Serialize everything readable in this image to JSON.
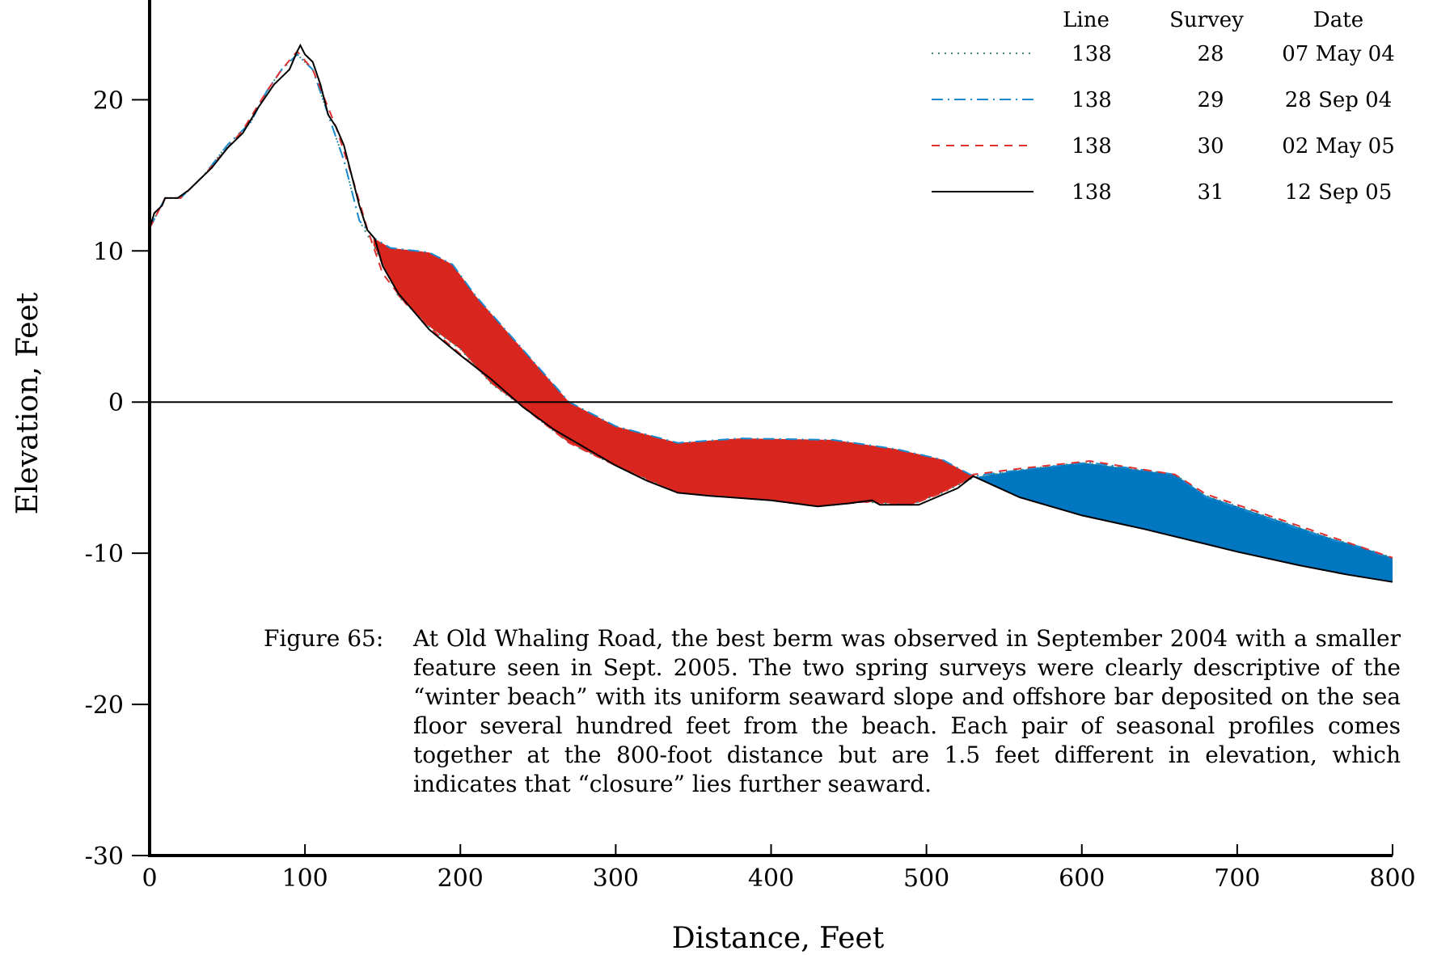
{
  "caption": {
    "label": "Figure 65:",
    "text": "At Old Whaling Road, the best berm was observed in September 2004 with a smaller feature seen in Sept. 2005.  The two spring surveys were clearly descriptive of the “winter beach” with its uniform seaward slope and offshore bar deposited on the sea floor several hundred feet from the beach.  Each pair of seasonal profiles comes together at the 800-foot distance but are 1.5 feet different in elevation, which indicates that “closure” lies further seaward."
  },
  "legend": {
    "headers": [
      "Line",
      "Survey",
      "Date"
    ],
    "entries": [
      {
        "line": "138",
        "survey": "28",
        "date": "07 May 04",
        "style": "dotted",
        "color": "#3a8a7a"
      },
      {
        "line": "138",
        "survey": "29",
        "date": "28 Sep 04",
        "style": "dash-dot",
        "color": "#1a8ad0"
      },
      {
        "line": "138",
        "survey": "30",
        "date": "02 May 05",
        "style": "dashed",
        "color": "#e03030"
      },
      {
        "line": "138",
        "survey": "31",
        "date": "12 Sep 05",
        "style": "solid",
        "color": "#000000"
      }
    ]
  },
  "colors": {
    "fill_erosion": "#d8261e",
    "fill_accretion": "#0077c0"
  },
  "chart_data": {
    "type": "line",
    "xlabel": "Distance, Feet",
    "ylabel": "Elevation, Feet",
    "xlim": [
      0,
      800
    ],
    "ylim": [
      -30,
      25
    ],
    "xticks": [
      0,
      100,
      200,
      300,
      400,
      500,
      600,
      700,
      800
    ],
    "yticks": [
      20,
      10,
      0,
      -10,
      -20,
      -30
    ],
    "zero_line": true,
    "series": [
      {
        "name": "Survey 28 (07 May 04)",
        "points": [
          [
            0,
            11.5
          ],
          [
            5,
            12.5
          ],
          [
            10,
            13.5
          ],
          [
            20,
            13.5
          ],
          [
            35,
            15
          ],
          [
            50,
            17
          ],
          [
            65,
            18.5
          ],
          [
            75,
            20.5
          ],
          [
            85,
            22
          ],
          [
            95,
            23
          ],
          [
            105,
            22
          ],
          [
            115,
            19
          ],
          [
            125,
            16
          ],
          [
            135,
            12
          ],
          [
            145,
            10.2
          ],
          [
            160,
            7
          ],
          [
            180,
            5
          ],
          [
            200,
            3.5
          ],
          [
            220,
            1.2
          ],
          [
            240,
            -0.3
          ],
          [
            270,
            -2.7
          ],
          [
            300,
            -4.2
          ],
          [
            340,
            -6
          ],
          [
            400,
            -6.5
          ],
          [
            430,
            -6.9
          ],
          [
            460,
            -6.6
          ],
          [
            490,
            -6.8
          ],
          [
            510,
            -6
          ],
          [
            530,
            -5
          ],
          [
            560,
            -4.5
          ],
          [
            600,
            -4
          ],
          [
            660,
            -4.8
          ],
          [
            680,
            -6.2
          ],
          [
            720,
            -7.6
          ],
          [
            760,
            -9
          ],
          [
            780,
            -9.6
          ],
          [
            800,
            -10.3
          ]
        ]
      },
      {
        "name": "Survey 29 (28 Sep 04)",
        "points": [
          [
            0,
            11.5
          ],
          [
            5,
            12.5
          ],
          [
            10,
            13.5
          ],
          [
            20,
            13.5
          ],
          [
            35,
            15
          ],
          [
            50,
            17
          ],
          [
            65,
            18.5
          ],
          [
            75,
            20.5
          ],
          [
            85,
            22
          ],
          [
            95,
            23
          ],
          [
            105,
            22
          ],
          [
            115,
            19
          ],
          [
            125,
            16
          ],
          [
            135,
            12
          ],
          [
            145,
            10.8
          ],
          [
            155,
            10.2
          ],
          [
            180,
            9.9
          ],
          [
            195,
            9.1
          ],
          [
            210,
            7
          ],
          [
            240,
            3.5
          ],
          [
            270,
            0
          ],
          [
            300,
            -1.6
          ],
          [
            340,
            -2.7
          ],
          [
            380,
            -2.4
          ],
          [
            440,
            -2.5
          ],
          [
            480,
            -3.1
          ],
          [
            510,
            -3.8
          ],
          [
            530,
            -4.9
          ],
          [
            560,
            -4.5
          ],
          [
            605,
            -4
          ],
          [
            640,
            -4.5
          ],
          [
            660,
            -4.8
          ],
          [
            680,
            -6.3
          ],
          [
            720,
            -7.7
          ],
          [
            760,
            -9.1
          ],
          [
            780,
            -9.6
          ],
          [
            800,
            -10.4
          ]
        ]
      },
      {
        "name": "Survey 30 (02 May 05)",
        "points": [
          [
            0,
            11.5
          ],
          [
            5,
            12.5
          ],
          [
            10,
            13.5
          ],
          [
            20,
            13.5
          ],
          [
            35,
            15
          ],
          [
            45,
            16.2
          ],
          [
            60,
            18
          ],
          [
            75,
            20.5
          ],
          [
            85,
            22
          ],
          [
            95,
            23.2
          ],
          [
            105,
            22
          ],
          [
            120,
            18.2
          ],
          [
            130,
            15
          ],
          [
            140,
            11.5
          ],
          [
            150,
            8.5
          ],
          [
            165,
            6.5
          ],
          [
            185,
            4.5
          ],
          [
            210,
            2.3
          ],
          [
            240,
            -0.3
          ],
          [
            270,
            -2.7
          ],
          [
            300,
            -4.2
          ],
          [
            340,
            -6
          ],
          [
            400,
            -6.5
          ],
          [
            430,
            -6.9
          ],
          [
            460,
            -6.6
          ],
          [
            490,
            -6.8
          ],
          [
            510,
            -6
          ],
          [
            530,
            -4.8
          ],
          [
            560,
            -4.4
          ],
          [
            605,
            -3.9
          ],
          [
            660,
            -4.8
          ],
          [
            680,
            -6.1
          ],
          [
            720,
            -7.5
          ],
          [
            760,
            -8.9
          ],
          [
            780,
            -9.6
          ],
          [
            800,
            -10.3
          ]
        ]
      },
      {
        "name": "Survey 31 (12 Sep 05)",
        "points": [
          [
            0,
            11.5
          ],
          [
            3,
            12.5
          ],
          [
            8,
            13
          ],
          [
            10,
            13.5
          ],
          [
            18,
            13.5
          ],
          [
            25,
            14
          ],
          [
            35,
            15
          ],
          [
            40,
            15.5
          ],
          [
            50,
            16.8
          ],
          [
            60,
            17.8
          ],
          [
            70,
            19.5
          ],
          [
            80,
            21
          ],
          [
            85,
            21.5
          ],
          [
            90,
            22
          ],
          [
            95,
            23.2
          ],
          [
            97,
            23.6
          ],
          [
            100,
            23
          ],
          [
            105,
            22.5
          ],
          [
            110,
            21
          ],
          [
            115,
            19
          ],
          [
            120,
            18.2
          ],
          [
            125,
            17
          ],
          [
            130,
            15
          ],
          [
            135,
            13
          ],
          [
            140,
            11.4
          ],
          [
            145,
            10.8
          ],
          [
            150,
            9
          ],
          [
            160,
            7.2
          ],
          [
            180,
            4.8
          ],
          [
            200,
            3.1
          ],
          [
            220,
            1.5
          ],
          [
            240,
            -0.3
          ],
          [
            260,
            -1.8
          ],
          [
            280,
            -3
          ],
          [
            300,
            -4.2
          ],
          [
            320,
            -5.2
          ],
          [
            340,
            -6
          ],
          [
            360,
            -6.2
          ],
          [
            400,
            -6.5
          ],
          [
            430,
            -6.9
          ],
          [
            450,
            -6.7
          ],
          [
            465,
            -6.5
          ],
          [
            470,
            -6.8
          ],
          [
            495,
            -6.8
          ],
          [
            520,
            -5.7
          ],
          [
            530,
            -4.9
          ],
          [
            560,
            -6.3
          ],
          [
            600,
            -7.5
          ],
          [
            640,
            -8.4
          ],
          [
            680,
            -9.4
          ],
          [
            700,
            -9.9
          ],
          [
            740,
            -10.8
          ],
          [
            770,
            -11.4
          ],
          [
            800,
            -11.9
          ]
        ]
      }
    ]
  }
}
